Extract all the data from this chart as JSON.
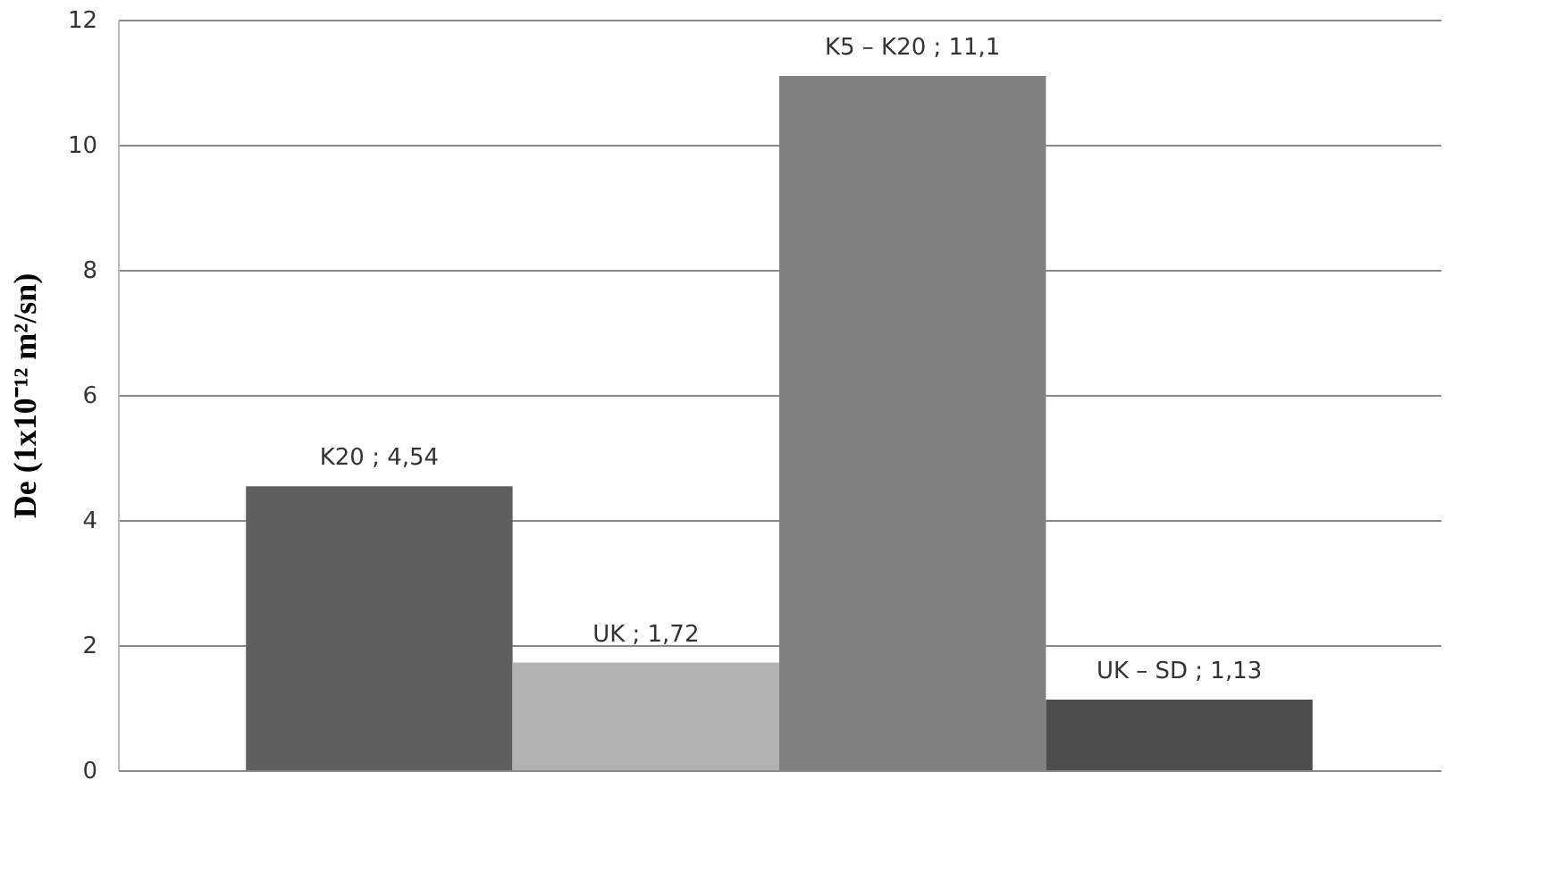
{
  "chart_data": {
    "type": "bar",
    "ylabel": "De (1x10⁻¹² m²/sn)",
    "categories": [
      null
    ],
    "ylim": [
      0,
      12
    ],
    "yticks": [
      0,
      2,
      4,
      6,
      8,
      10,
      12
    ],
    "grid": "y",
    "tick_labels": "y",
    "series": [
      {
        "name": "K20",
        "color": "#5f5f5f",
        "values": [
          4.54
        ],
        "value_labels": [
          "; 4,54"
        ]
      },
      {
        "name": "UK",
        "color": "#b2b2b2",
        "values": [
          1.72
        ],
        "value_labels": [
          "; 1,72"
        ]
      },
      {
        "name": "K5 – K20",
        "color": "#808080",
        "values": [
          11.1
        ],
        "value_labels": [
          "; 11,1"
        ]
      },
      {
        "name": "UK – SD",
        "color": "#4d4d4d",
        "values": [
          1.13
        ],
        "value_labels": [
          "; 1,13"
        ]
      }
    ]
  }
}
